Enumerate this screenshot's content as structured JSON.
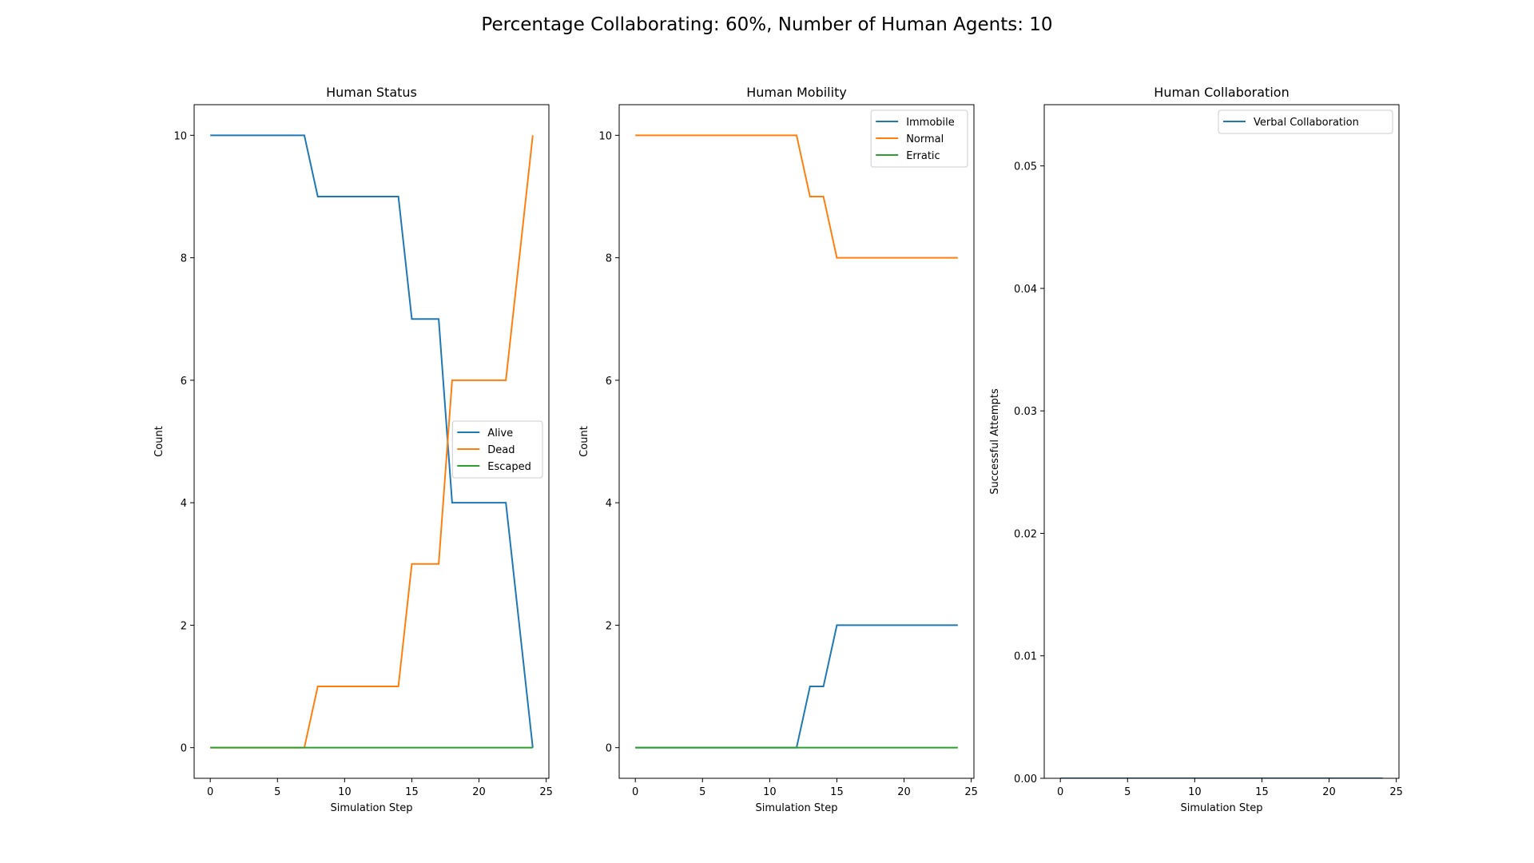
{
  "figure": {
    "suptitle": "Percentage Collaborating: 60%, Number of Human Agents: 10"
  },
  "chart_data": [
    {
      "type": "line",
      "title": "Human Status",
      "xlabel": "Simulation Step",
      "ylabel": "Count",
      "xlim": [
        -1.2,
        25.2
      ],
      "ylim": [
        -0.5,
        10.5
      ],
      "xticks": [
        0,
        5,
        10,
        15,
        20,
        25
      ],
      "yticks": [
        0,
        2,
        4,
        6,
        8,
        10
      ],
      "ytick_format": "int",
      "legend_position": "center-right",
      "grid": false,
      "x": [
        0,
        1,
        2,
        3,
        4,
        5,
        6,
        7,
        8,
        9,
        10,
        11,
        12,
        13,
        14,
        15,
        16,
        17,
        18,
        19,
        20,
        21,
        22,
        23,
        24
      ],
      "series": [
        {
          "name": "Alive",
          "color": "#1f77b4",
          "values": [
            10,
            10,
            10,
            10,
            10,
            10,
            10,
            10,
            9,
            9,
            9,
            9,
            9,
            9,
            9,
            7,
            7,
            7,
            4,
            4,
            4,
            4,
            4,
            2,
            0
          ]
        },
        {
          "name": "Dead",
          "color": "#ff7f0e",
          "values": [
            0,
            0,
            0,
            0,
            0,
            0,
            0,
            0,
            1,
            1,
            1,
            1,
            1,
            1,
            1,
            3,
            3,
            3,
            6,
            6,
            6,
            6,
            6,
            8,
            10
          ]
        },
        {
          "name": "Escaped",
          "color": "#2ca02c",
          "values": [
            0,
            0,
            0,
            0,
            0,
            0,
            0,
            0,
            0,
            0,
            0,
            0,
            0,
            0,
            0,
            0,
            0,
            0,
            0,
            0,
            0,
            0,
            0,
            0,
            0
          ]
        }
      ]
    },
    {
      "type": "line",
      "title": "Human Mobility",
      "xlabel": "Simulation Step",
      "ylabel": "Count",
      "xlim": [
        -1.2,
        25.2
      ],
      "ylim": [
        -0.5,
        10.5
      ],
      "xticks": [
        0,
        5,
        10,
        15,
        20,
        25
      ],
      "yticks": [
        0,
        2,
        4,
        6,
        8,
        10
      ],
      "ytick_format": "int",
      "legend_position": "top-right",
      "grid": false,
      "x": [
        0,
        1,
        2,
        3,
        4,
        5,
        6,
        7,
        8,
        9,
        10,
        11,
        12,
        13,
        14,
        15,
        16,
        17,
        18,
        19,
        20,
        21,
        22,
        23,
        24
      ],
      "series": [
        {
          "name": "Immobile",
          "color": "#1f77b4",
          "values": [
            0,
            0,
            0,
            0,
            0,
            0,
            0,
            0,
            0,
            0,
            0,
            0,
            0,
            1,
            1,
            2,
            2,
            2,
            2,
            2,
            2,
            2,
            2,
            2,
            2
          ]
        },
        {
          "name": "Normal",
          "color": "#ff7f0e",
          "values": [
            10,
            10,
            10,
            10,
            10,
            10,
            10,
            10,
            10,
            10,
            10,
            10,
            10,
            9,
            9,
            8,
            8,
            8,
            8,
            8,
            8,
            8,
            8,
            8,
            8
          ]
        },
        {
          "name": "Erratic",
          "color": "#2ca02c",
          "values": [
            0,
            0,
            0,
            0,
            0,
            0,
            0,
            0,
            0,
            0,
            0,
            0,
            0,
            0,
            0,
            0,
            0,
            0,
            0,
            0,
            0,
            0,
            0,
            0,
            0
          ]
        }
      ]
    },
    {
      "type": "line",
      "title": "Human Collaboration",
      "xlabel": "Simulation Step",
      "ylabel": "Successful Attempts",
      "xlim": [
        -1.2,
        25.2
      ],
      "ylim": [
        0,
        0.055
      ],
      "xticks": [
        0,
        5,
        10,
        15,
        20,
        25
      ],
      "yticks": [
        0.0,
        0.01,
        0.02,
        0.03,
        0.04,
        0.05
      ],
      "ytick_format": "2dp",
      "legend_position": "top-right",
      "grid": false,
      "x": [
        0,
        1,
        2,
        3,
        4,
        5,
        6,
        7,
        8,
        9,
        10,
        11,
        12,
        13,
        14,
        15,
        16,
        17,
        18,
        19,
        20,
        21,
        22,
        23,
        24
      ],
      "series": [
        {
          "name": "Verbal Collaboration",
          "color": "#1f77b4",
          "values": [
            0,
            0,
            0,
            0,
            0,
            0,
            0,
            0,
            0,
            0,
            0,
            0,
            0,
            0,
            0,
            0,
            0,
            0,
            0,
            0,
            0,
            0,
            0,
            0,
            0
          ]
        }
      ]
    }
  ]
}
